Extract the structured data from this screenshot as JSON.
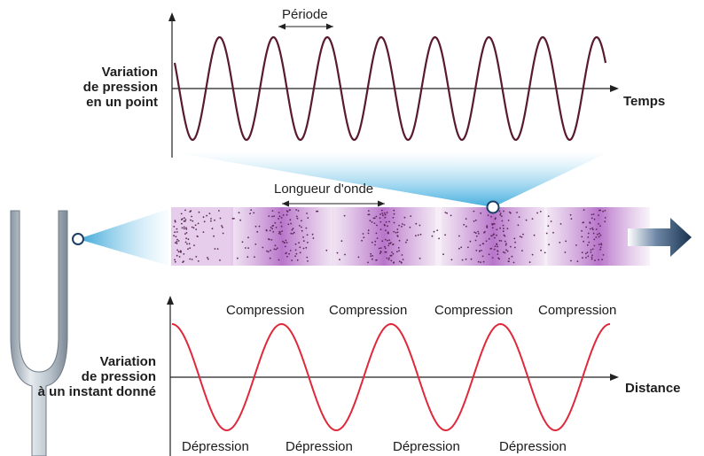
{
  "top_chart": {
    "ylabel_lines": [
      "Variation",
      "de pression",
      "en un point"
    ],
    "xlabel": "Temps",
    "annotation": "Période",
    "cycles": 8,
    "color": "#5a1a2e"
  },
  "tube": {
    "annotation": "Longueur d'onde",
    "compressions": 4,
    "dot_color": "#5b2a5a",
    "band_color": "#c58fd2"
  },
  "bottom_chart": {
    "ylabel_lines": [
      "Variation",
      "de pression",
      "à un instant donné"
    ],
    "xlabel": "Distance",
    "compression_labels": [
      "Compression",
      "Compression",
      "Compression",
      "Compression"
    ],
    "depression_labels": [
      "Dépression",
      "Dépression",
      "Dépression",
      "Dépression"
    ],
    "cycles": 4,
    "color": "#e0283a"
  },
  "colors": {
    "beam": "#4fb7e0",
    "arrow": "#1c3f66",
    "fork": "#9aa7b3"
  }
}
